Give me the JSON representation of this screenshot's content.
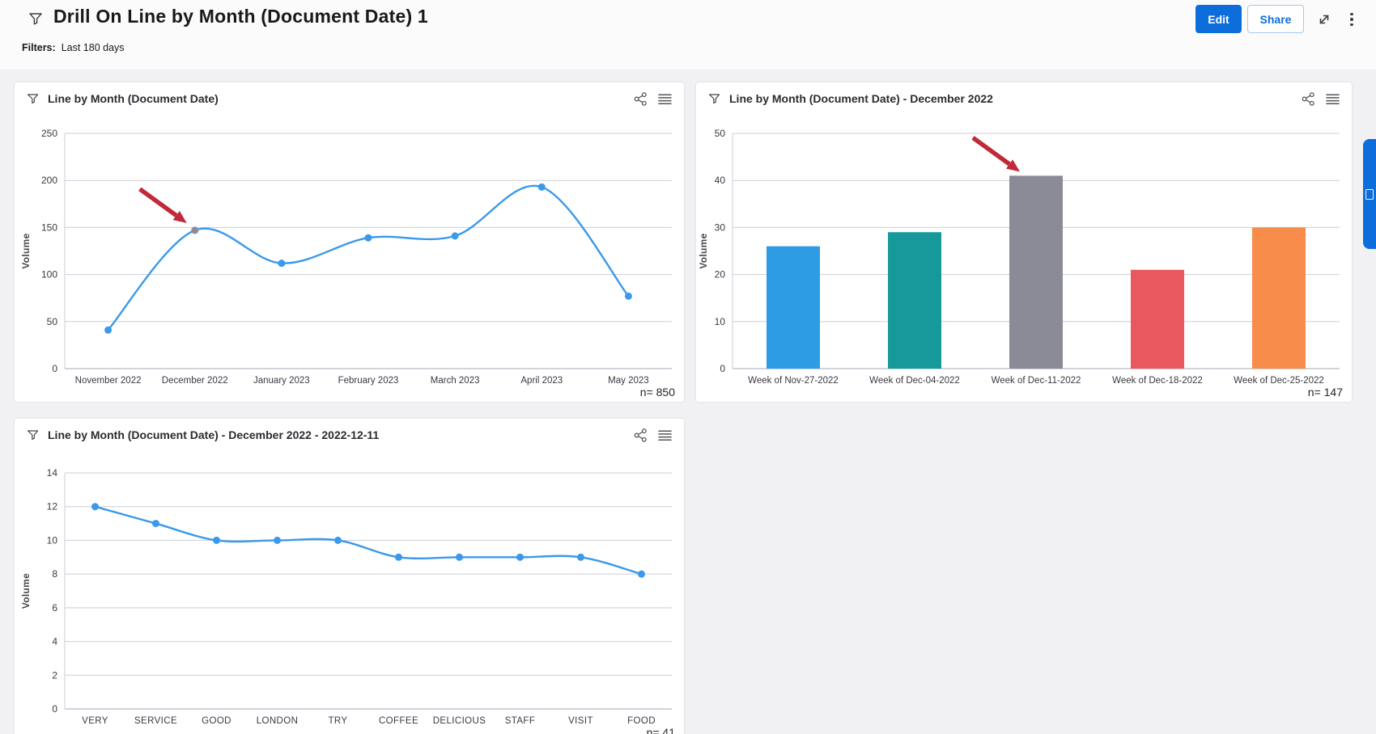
{
  "page": {
    "title": "Drill On Line by Month (Document Date) 1",
    "filters_label": "Filters:",
    "filters_value": "Last 180 days"
  },
  "toolbar": {
    "edit_label": "Edit",
    "share_label": "Share"
  },
  "icons": {
    "page_filter": "funnel",
    "widget_filter": "funnel",
    "widget_share": "share-network-nodes",
    "widget_menu": "hamburger-lines",
    "expand": "diagonal-resize-arrows",
    "more_options": "kebab-dots",
    "side_tab": "collapsed-panel-toggle"
  },
  "colors": {
    "accent_blue": "#0d6edb",
    "line_blue": "#3a99ea",
    "selected_gray": "#8a8b97",
    "arrow_red": "#c0293a",
    "grid": "#cdced9",
    "axis": "#a6a8ba"
  },
  "widgets": [
    {
      "id": "line_by_month",
      "title": "Line by Month (Document Date)",
      "n_label": "n= 850",
      "chart_data": {
        "type": "line",
        "categories": [
          "November 2022",
          "December 2022",
          "January 2023",
          "February 2023",
          "March 2023",
          "April 2023",
          "May 2023"
        ],
        "values": [
          41,
          147,
          112,
          139,
          141,
          193,
          77
        ],
        "ylabel": "Volume",
        "ylim": [
          0,
          250
        ],
        "ytick_step": 50,
        "grid": true,
        "selected_index": 1,
        "annotation": {
          "type": "arrow",
          "target_index": 1
        }
      }
    },
    {
      "id": "line_by_month_december_2022",
      "title": "Line by Month (Document Date) - December 2022",
      "n_label": "n= 147",
      "chart_data": {
        "type": "bar",
        "categories": [
          "Week of Nov-27-2022",
          "Week of Dec-04-2022",
          "Week of Dec-11-2022",
          "Week of Dec-18-2022",
          "Week of Dec-25-2022"
        ],
        "values": [
          26,
          29,
          41,
          21,
          30
        ],
        "bar_colors": [
          "#2E9BE5",
          "#17999B",
          "#8A8B97",
          "#E9575F",
          "#F78C4B"
        ],
        "ylabel": "Volume",
        "ylim": [
          0,
          50
        ],
        "ytick_step": 10,
        "grid": true,
        "annotation": {
          "type": "arrow",
          "target_index": 2
        }
      }
    },
    {
      "id": "line_by_month_december_2022_12_11",
      "title": "Line by Month (Document Date) - December 2022 - 2022-12-11",
      "n_label": "n= 41",
      "chart_data": {
        "type": "line",
        "categories": [
          "VERY",
          "SERVICE",
          "GOOD",
          "LONDON",
          "TRY",
          "COFFEE",
          "DELICIOUS",
          "STAFF",
          "VISIT",
          "FOOD"
        ],
        "values": [
          12,
          11,
          10,
          10,
          10,
          9,
          9,
          9,
          9,
          8
        ],
        "ylabel": "Volume",
        "ylim": [
          0,
          14
        ],
        "ytick_step": 2,
        "grid": true,
        "annotation": null
      }
    }
  ]
}
